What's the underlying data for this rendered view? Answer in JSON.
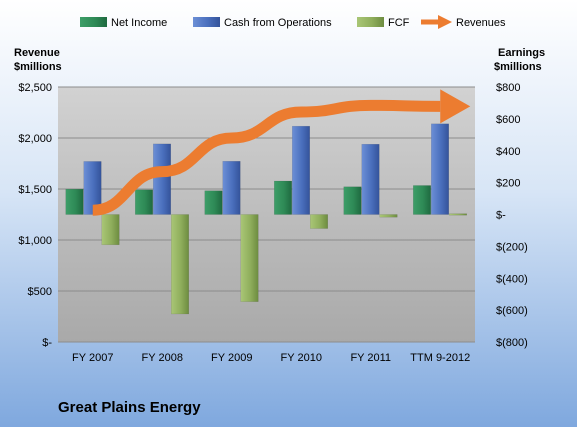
{
  "chart_data": {
    "type": "bar",
    "title": "Great Plains Energy",
    "categories": [
      "FY 2007",
      "FY 2008",
      "FY 2009",
      "FY 2010",
      "FY 2011",
      "TTM 9-2012"
    ],
    "left_axis": {
      "label_line1": "Revenue",
      "label_line2": "$millions",
      "ylim": [
        0,
        2500
      ],
      "ticks": [
        0,
        500,
        1000,
        1500,
        2000,
        2500
      ],
      "tick_labels": [
        "$-",
        "$500",
        "$1,000",
        "$1,500",
        "$2,000",
        "$2,500"
      ]
    },
    "right_axis": {
      "label_line1": "Earnings",
      "label_line2": "$millions",
      "ylim": [
        -800,
        800
      ],
      "ticks": [
        -800,
        -600,
        -400,
        -200,
        0,
        200,
        400,
        600,
        800
      ],
      "tick_labels": [
        "$(800)",
        "$(600)",
        "$(400)",
        "$(200)",
        "$-",
        "$200",
        "$400",
        "$600",
        "$800"
      ]
    },
    "series": [
      {
        "name": "Net Income",
        "axis": "right",
        "color": "#2e8a56",
        "values": [
          159,
          155,
          149,
          210,
          174,
          182
        ]
      },
      {
        "name": "Cash from Operations",
        "axis": "right",
        "color": "#4a6fbd",
        "values": [
          333,
          443,
          334,
          554,
          441,
          569
        ]
      },
      {
        "name": "FCF",
        "axis": "right",
        "color": "#8fae5c",
        "values": [
          -190,
          -624,
          -547,
          -88,
          -17,
          5
        ]
      },
      {
        "name": "Revenues",
        "axis": "left",
        "color": "#ec7c30",
        "type": "line",
        "values": [
          1292,
          1670,
          2000,
          2255,
          2320,
          2310
        ]
      }
    ],
    "legend_position": "top",
    "grid": true
  }
}
